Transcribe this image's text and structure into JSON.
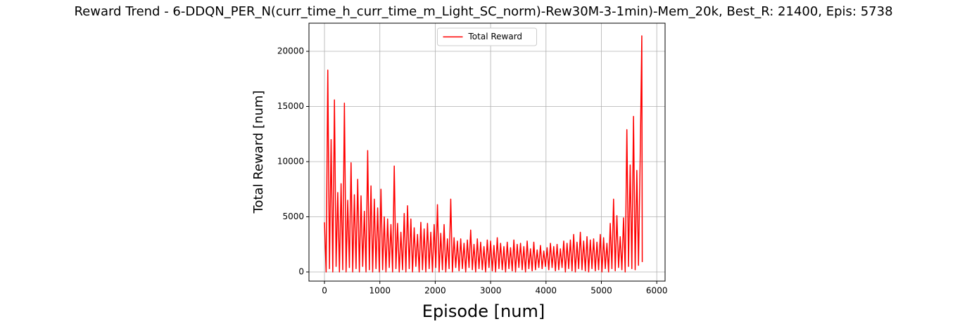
{
  "chart_data": {
    "type": "line",
    "title": "Reward Trend - 6-DDQN_PER_N(curr_time_h_curr_time_m_Light_SC_norm)-Rew30M-3-1min)-Mem_20k, Best_R: 21400, Epis: 5738",
    "x_label": "Episode [num]",
    "y_label": "Total Reward [num]",
    "x": [
      0,
      30,
      60,
      90,
      120,
      150,
      180,
      210,
      240,
      270,
      300,
      330,
      360,
      390,
      420,
      450,
      480,
      510,
      540,
      570,
      600,
      630,
      660,
      690,
      720,
      750,
      780,
      810,
      840,
      870,
      900,
      930,
      960,
      990,
      1020,
      1050,
      1080,
      1110,
      1140,
      1170,
      1200,
      1230,
      1260,
      1290,
      1320,
      1350,
      1380,
      1410,
      1440,
      1470,
      1500,
      1530,
      1560,
      1590,
      1620,
      1650,
      1680,
      1710,
      1740,
      1770,
      1800,
      1830,
      1860,
      1890,
      1920,
      1950,
      1980,
      2010,
      2040,
      2070,
      2100,
      2130,
      2160,
      2190,
      2220,
      2250,
      2280,
      2310,
      2340,
      2370,
      2400,
      2430,
      2460,
      2490,
      2520,
      2550,
      2580,
      2610,
      2640,
      2670,
      2700,
      2730,
      2760,
      2790,
      2820,
      2850,
      2880,
      2910,
      2940,
      2970,
      3000,
      3030,
      3060,
      3090,
      3120,
      3150,
      3180,
      3210,
      3240,
      3270,
      3300,
      3330,
      3360,
      3390,
      3420,
      3450,
      3480,
      3510,
      3540,
      3570,
      3600,
      3630,
      3660,
      3690,
      3720,
      3750,
      3780,
      3810,
      3840,
      3870,
      3900,
      3930,
      3960,
      3990,
      4020,
      4050,
      4080,
      4110,
      4140,
      4170,
      4200,
      4230,
      4260,
      4290,
      4320,
      4350,
      4380,
      4410,
      4440,
      4470,
      4500,
      4530,
      4560,
      4590,
      4620,
      4650,
      4680,
      4710,
      4740,
      4770,
      4800,
      4830,
      4860,
      4890,
      4920,
      4950,
      4980,
      5010,
      5040,
      5070,
      5100,
      5130,
      5160,
      5190,
      5220,
      5250,
      5280,
      5310,
      5340,
      5370,
      5400,
      5430,
      5460,
      5490,
      5520,
      5550,
      5580,
      5610,
      5640,
      5670,
      5700,
      5730,
      5738
    ],
    "series": [
      {
        "name": "Total Reward",
        "color": "#ff0000",
        "values": [
          4500,
          0,
          18300,
          300,
          12000,
          0,
          15600,
          500,
          7200,
          0,
          8000,
          200,
          15300,
          0,
          6500,
          400,
          9900,
          0,
          7000,
          300,
          8400,
          0,
          6900,
          500,
          5500,
          0,
          11000,
          200,
          7800,
          0,
          6600,
          300,
          5800,
          0,
          7500,
          200,
          5000,
          0,
          4800,
          400,
          4300,
          0,
          9600,
          300,
          4400,
          0,
          3600,
          200,
          5300,
          0,
          6000,
          300,
          4800,
          0,
          4000,
          500,
          3400,
          0,
          4500,
          200,
          3900,
          0,
          4400,
          300,
          3600,
          0,
          4300,
          400,
          6100,
          0,
          3500,
          200,
          4300,
          0,
          3000,
          300,
          6600,
          0,
          3100,
          400,
          2800,
          100,
          3000,
          300,
          2600,
          0,
          2900,
          400,
          3800,
          200,
          2500,
          0,
          3000,
          300,
          2700,
          200,
          2300,
          0,
          2900,
          400,
          2800,
          100,
          2400,
          0,
          3100,
          300,
          2600,
          200,
          2300,
          0,
          2700,
          300,
          2200,
          100,
          2900,
          0,
          2500,
          400,
          2600,
          200,
          2300,
          0,
          2800,
          300,
          2100,
          100,
          2700,
          200,
          2000,
          400,
          2400,
          300,
          1900,
          500,
          2200,
          200,
          2600,
          400,
          2300,
          100,
          2500,
          200,
          2100,
          400,
          2800,
          0,
          2600,
          300,
          2900,
          100,
          3400,
          0,
          2700,
          300,
          3600,
          200,
          2800,
          100,
          3200,
          0,
          2900,
          300,
          3000,
          100,
          2700,
          200,
          3400,
          0,
          3100,
          300,
          2600,
          0,
          4400,
          300,
          6600,
          100,
          5100,
          400,
          3200,
          200,
          4900,
          0,
          12900,
          500,
          9700,
          300,
          14100,
          200,
          9200,
          600,
          10100,
          21400,
          900
        ]
      }
    ],
    "xlim": [
      -280,
      6150
    ],
    "ylim": [
      -830,
      22550
    ],
    "xticks": [
      0,
      1000,
      2000,
      3000,
      4000,
      5000,
      6000
    ],
    "yticks": [
      0,
      5000,
      10000,
      15000,
      20000
    ],
    "grid": true,
    "legend": "upper center"
  }
}
